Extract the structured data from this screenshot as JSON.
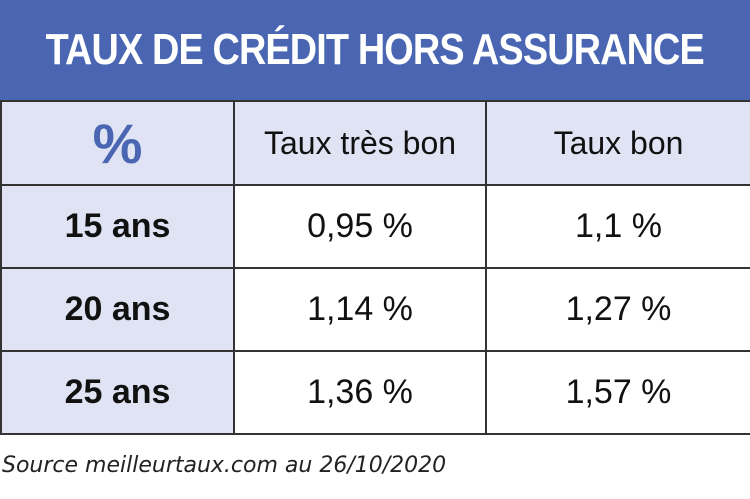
{
  "title": "TAUX DE CRÉDIT HORS ASSURANCE",
  "table": {
    "corner_symbol": "%",
    "headers": [
      "Taux très bon",
      "Taux bon"
    ],
    "rows": [
      {
        "label": "15 ans",
        "values": [
          "0,95 %",
          "1,1 %"
        ]
      },
      {
        "label": "20 ans",
        "values": [
          "1,14 %",
          "1,27 %"
        ]
      },
      {
        "label": "25 ans",
        "values": [
          "1,36 %",
          "1,57 %"
        ]
      }
    ]
  },
  "source": "Source meilleurtaux.com au 26/10/2020",
  "colors": {
    "title_background": "#4a66b3",
    "header_background": "#dfe3f3",
    "accent": "#4a66b3"
  }
}
